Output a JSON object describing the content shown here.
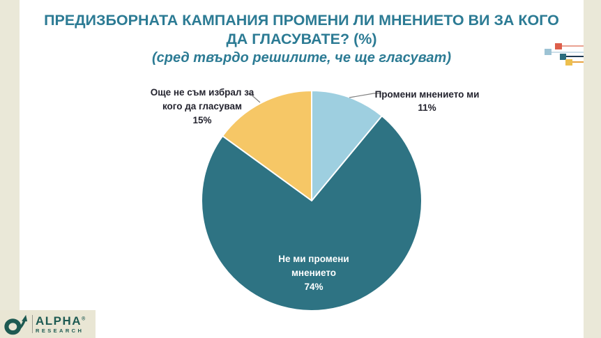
{
  "slide": {
    "title_line1": "ПРЕДИЗБОРНАТА КАМПАНИЯ ПРОМЕНИ ЛИ МНЕНИЕТО ВИ ЗА КОГО",
    "title_line2": "ДА ГЛАСУВАТЕ? (%)",
    "subtitle": "(сред твърдо решилите, че ще гласуват)"
  },
  "chart_data": {
    "type": "pie",
    "title": "ПРЕДИЗБОРНАТА КАМПАНИЯ ПРОМЕНИ ЛИ МНЕНИЕТО ВИ ЗА КОГО ДА ГЛАСУВАТЕ? (%)",
    "subtitle": "(сред твърдо решилите, че ще гласуват)",
    "unit": "%",
    "total": 100,
    "start_angle": "12 o'clock, clockwise",
    "legend_position": "none (labels placed on/next to slices)",
    "slices": [
      {
        "label": "Промени мнението ми",
        "value": 11,
        "color": "#9ecfe0"
      },
      {
        "label": "Не ми промени мнението",
        "value": 74,
        "color": "#2e7383"
      },
      {
        "label": "Още не съм избрал за кого да гласувам",
        "value": 15,
        "color": "#f6c766"
      }
    ]
  },
  "labels": {
    "changed": {
      "line1": "Промени мнението ми",
      "value": "11%"
    },
    "not_changed": {
      "line1": "Не ми промени",
      "line2": "мнението",
      "value": "74%"
    },
    "undecided": {
      "line1": "Още не съм избрал за",
      "line2": "кого да гласувам",
      "value": "15%"
    }
  },
  "logo": {
    "brand": "ALPHA",
    "registered": "®",
    "sub": "RESEARCH"
  },
  "colors": {
    "title_teal": "#2c7b94",
    "slice_lightblue": "#9ecfe0",
    "slice_teal": "#2e7383",
    "slice_yellow": "#f6c766",
    "background_strip": "#eae8d8",
    "logo_teal": "#1d5a52",
    "leader_line": "#7f7f7f"
  }
}
